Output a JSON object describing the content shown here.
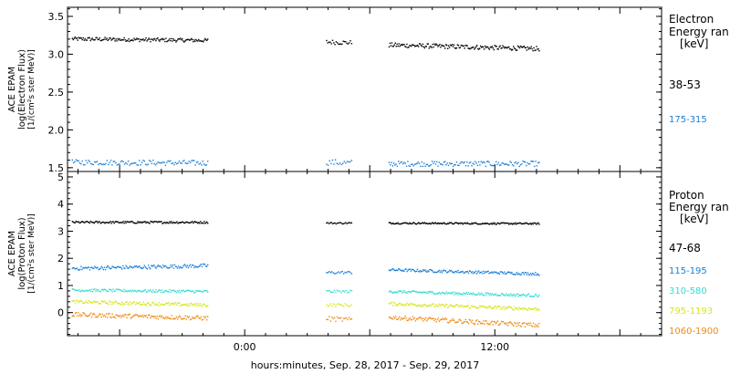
{
  "colors": {
    "background": "#ffffff",
    "axis": "#000000",
    "black_series": "#000000",
    "blue_series": "#1a7fd6",
    "cyan_series": "#33dcd2",
    "yellow_series": "#d6e61a",
    "orange_series": "#ef8a14"
  },
  "xaxis": {
    "label": "hours:minutes, Sep. 28, 2017 - Sep. 29, 2017",
    "ticks": [
      "0:00",
      "12:00"
    ],
    "range_hours": [
      -8.5,
      20.0
    ]
  },
  "chart_data": [
    {
      "type": "scatter",
      "panel": "electron",
      "ylabel_lines": [
        "ACE EPAM",
        "log(Electron Flux)",
        "[1/(cm²s ster MeV)]"
      ],
      "ylim": [
        1.45,
        3.62
      ],
      "yticks": [
        "1.5",
        "2.0",
        "2.5",
        "3.0",
        "3.5"
      ],
      "ytick_values": [
        1.5,
        2.0,
        2.5,
        3.0,
        3.5
      ],
      "legend_title_lines": [
        "Electron",
        "Energy ran",
        "[keV]"
      ],
      "gaps_hours": [
        [
          -1.8,
          3.8
        ],
        [
          5.2,
          6.8
        ],
        [
          14.2,
          20.0
        ]
      ],
      "series": [
        {
          "name": "38-53",
          "color": "#000000",
          "segments": [
            {
              "x0": -8.3,
              "x1": -1.8,
              "y0": 3.21,
              "y1": 3.19,
              "noise": 0.025,
              "n": 150
            },
            {
              "x0": 3.9,
              "x1": 5.1,
              "y0": 3.17,
              "y1": 3.16,
              "noise": 0.03,
              "n": 22
            },
            {
              "x0": 6.9,
              "x1": 14.1,
              "y0": 3.13,
              "y1": 3.08,
              "noise": 0.03,
              "n": 170
            }
          ]
        },
        {
          "name": "175-315",
          "color": "#1a7fd6",
          "segments": [
            {
              "x0": -8.3,
              "x1": -1.8,
              "y0": 1.58,
              "y1": 1.57,
              "noise": 0.035,
              "n": 110
            },
            {
              "x0": 3.9,
              "x1": 5.1,
              "y0": 1.58,
              "y1": 1.57,
              "noise": 0.04,
              "n": 18
            },
            {
              "x0": 6.9,
              "x1": 14.1,
              "y0": 1.56,
              "y1": 1.56,
              "noise": 0.035,
              "n": 130
            }
          ]
        }
      ]
    },
    {
      "type": "scatter",
      "panel": "proton",
      "ylabel_lines": [
        "ACE EPAM",
        "log(Proton Flux)",
        "[1/(cm²s ster MeV)]"
      ],
      "ylim": [
        -0.85,
        5.2
      ],
      "yticks": [
        "0",
        "1",
        "2",
        "3",
        "4",
        "5"
      ],
      "ytick_values": [
        0,
        1,
        2,
        3,
        4,
        5
      ],
      "legend_title_lines": [
        "Proton",
        "Energy ran",
        "[keV]"
      ],
      "series": [
        {
          "name": "47-68",
          "color": "#000000",
          "segments": [
            {
              "x0": -8.3,
              "x1": -1.8,
              "y0": 3.35,
              "y1": 3.35,
              "noise": 0.04,
              "n": 150
            },
            {
              "x0": 3.9,
              "x1": 5.1,
              "y0": 3.32,
              "y1": 3.32,
              "noise": 0.03,
              "n": 22
            },
            {
              "x0": 6.9,
              "x1": 14.1,
              "y0": 3.32,
              "y1": 3.3,
              "noise": 0.03,
              "n": 170
            }
          ]
        },
        {
          "name": "115-195",
          "color": "#1a7fd6",
          "segments": [
            {
              "x0": -8.3,
              "x1": -1.8,
              "y0": 1.65,
              "y1": 1.75,
              "noise": 0.07,
              "n": 140
            },
            {
              "x0": 3.9,
              "x1": 5.1,
              "y0": 1.5,
              "y1": 1.5,
              "noise": 0.05,
              "n": 20
            },
            {
              "x0": 6.9,
              "x1": 14.1,
              "y0": 1.6,
              "y1": 1.45,
              "noise": 0.05,
              "n": 160
            }
          ]
        },
        {
          "name": "310-580",
          "color": "#33dcd2",
          "segments": [
            {
              "x0": -8.3,
              "x1": -1.8,
              "y0": 0.85,
              "y1": 0.8,
              "noise": 0.05,
              "n": 140
            },
            {
              "x0": 3.9,
              "x1": 5.1,
              "y0": 0.8,
              "y1": 0.8,
              "noise": 0.05,
              "n": 20
            },
            {
              "x0": 6.9,
              "x1": 14.1,
              "y0": 0.8,
              "y1": 0.65,
              "noise": 0.05,
              "n": 160
            }
          ]
        },
        {
          "name": "795-1193",
          "color": "#d6e61a",
          "segments": [
            {
              "x0": -8.3,
              "x1": -1.8,
              "y0": 0.42,
              "y1": 0.3,
              "noise": 0.06,
              "n": 140
            },
            {
              "x0": 3.9,
              "x1": 5.1,
              "y0": 0.3,
              "y1": 0.3,
              "noise": 0.06,
              "n": 20
            },
            {
              "x0": 6.9,
              "x1": 14.1,
              "y0": 0.35,
              "y1": 0.15,
              "noise": 0.06,
              "n": 160
            }
          ]
        },
        {
          "name": "1060-1900",
          "color": "#ef8a14",
          "segments": [
            {
              "x0": -8.3,
              "x1": -1.8,
              "y0": -0.05,
              "y1": -0.18,
              "noise": 0.08,
              "n": 140
            },
            {
              "x0": 3.9,
              "x1": 5.1,
              "y0": -0.2,
              "y1": -0.25,
              "noise": 0.09,
              "n": 20
            },
            {
              "x0": 6.9,
              "x1": 14.1,
              "y0": -0.15,
              "y1": -0.45,
              "noise": 0.08,
              "n": 160
            }
          ]
        }
      ]
    }
  ]
}
